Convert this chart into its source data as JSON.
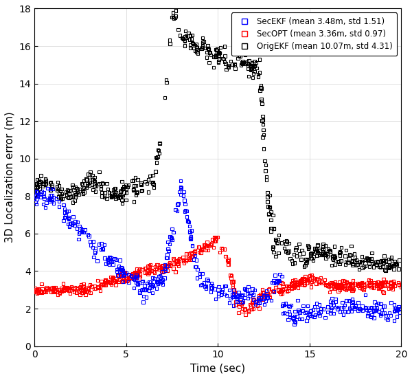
{
  "xlabel": "Time (sec)",
  "ylabel": "3D Localization error (m)",
  "xlim": [
    0,
    20
  ],
  "ylim": [
    0,
    18
  ],
  "xticks": [
    0,
    5,
    10,
    15,
    20
  ],
  "yticks": [
    0,
    2,
    4,
    6,
    8,
    10,
    12,
    14,
    16,
    18
  ],
  "legend_labels": [
    "SecEKF (mean 3.48m, std 1.51)",
    "SecOPT (mean 3.36m, std 0.97)",
    "OrigEKF (mean 10.07m, std 4.31)"
  ],
  "colors": [
    "blue",
    "red",
    "black"
  ],
  "figsize": [
    6.0,
    5.5
  ],
  "dpi": 100
}
